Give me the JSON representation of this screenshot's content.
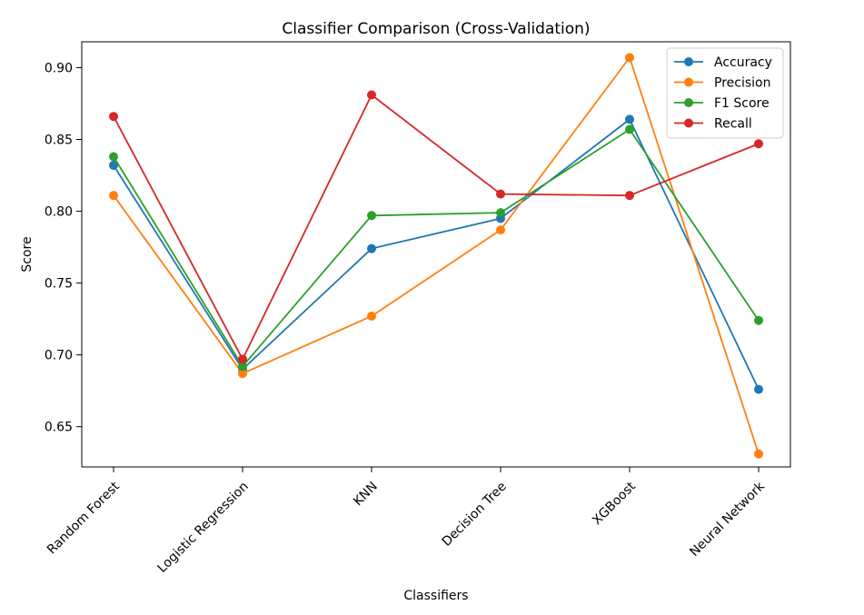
{
  "chart_data": {
    "type": "line",
    "title": "Classifier Comparison (Cross-Validation)",
    "xlabel": "Classifiers",
    "ylabel": "Score",
    "categories": [
      "Random Forest",
      "Logistic Regression",
      "KNN",
      "Decision Tree",
      "XGBoost",
      "Neural Network"
    ],
    "ylim": [
      0.622,
      0.918
    ],
    "yticks": [
      "0.65",
      "0.70",
      "0.75",
      "0.80",
      "0.85",
      "0.90"
    ],
    "grid": false,
    "legend_position": "top-right",
    "series": [
      {
        "name": "Accuracy",
        "color": "#1f77b4",
        "values": [
          0.832,
          0.69,
          0.774,
          0.795,
          0.864,
          0.676
        ]
      },
      {
        "name": "Precision",
        "color": "#ff7f0e",
        "values": [
          0.811,
          0.687,
          0.727,
          0.787,
          0.907,
          0.631
        ]
      },
      {
        "name": "F1 Score",
        "color": "#2ca02c",
        "values": [
          0.838,
          0.692,
          0.797,
          0.799,
          0.857,
          0.724
        ]
      },
      {
        "name": "Recall",
        "color": "#d62728",
        "values": [
          0.866,
          0.697,
          0.881,
          0.812,
          0.811,
          0.847
        ]
      }
    ]
  }
}
